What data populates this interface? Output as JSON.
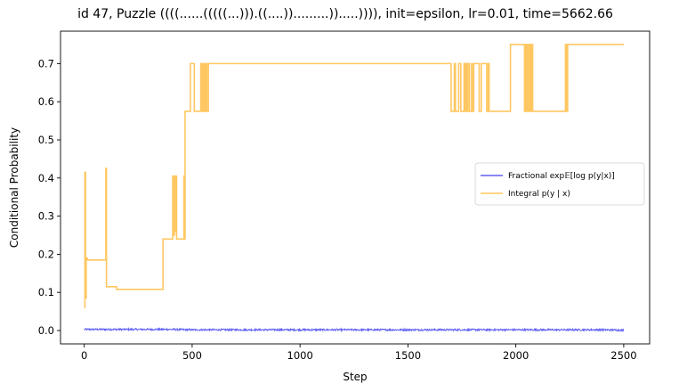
{
  "chart_data": {
    "type": "line",
    "title": "id 47, Puzzle ((((......(((((...))).((....)).........)).....)))), init=epsilon, lr=0.01, time=5662.66",
    "xlabel": "Step",
    "ylabel": "Conditional Probability",
    "xlim": [
      -110,
      2620
    ],
    "ylim": [
      -0.035,
      0.785
    ],
    "xticks": [
      0,
      500,
      1000,
      1500,
      2000,
      2500
    ],
    "yticks": [
      0.0,
      0.1,
      0.2,
      0.3,
      0.4,
      0.5,
      0.6,
      0.7
    ],
    "ytick_labels": [
      "0.0",
      "0.1",
      "0.2",
      "0.3",
      "0.4",
      "0.5",
      "0.6",
      "0.7"
    ],
    "grid": false,
    "legend_position": "center-right",
    "series": [
      {
        "name": "Fractional exp𝔼[log p(y|x)]",
        "color": "#0000ee",
        "style": "noisy",
        "x": [
          0,
          100,
          200,
          300,
          400,
          500,
          600,
          700,
          800,
          900,
          1000,
          1100,
          1200,
          1300,
          1400,
          1500,
          1600,
          1700,
          1800,
          1900,
          2000,
          2100,
          2200,
          2300,
          2400,
          2500
        ],
        "y": [
          0.003,
          0.003,
          0.003,
          0.003,
          0.003,
          0.002,
          0.002,
          0.002,
          0.002,
          0.002,
          0.002,
          0.002,
          0.002,
          0.002,
          0.002,
          0.002,
          0.002,
          0.002,
          0.002,
          0.002,
          0.002,
          0.002,
          0.002,
          0.002,
          0.002,
          0.001
        ]
      },
      {
        "name": "Integral p(y | x)",
        "color": "#ffa500",
        "style": "step",
        "x": [
          0,
          3,
          6,
          9,
          12,
          15,
          100,
          103,
          106,
          150,
          365,
          410,
          413,
          418,
          420,
          425,
          428,
          462,
          465,
          467,
          487,
          492,
          510,
          540,
          545,
          548,
          552,
          555,
          558,
          562,
          568,
          575,
          1700,
          1715,
          1720,
          1735,
          1745,
          1760,
          1763,
          1768,
          1772,
          1778,
          1785,
          1795,
          1798,
          1805,
          1830,
          1840,
          1845,
          1865,
          1872,
          1876,
          1885,
          1975,
          2040,
          2043,
          2048,
          2052,
          2058,
          2062,
          2067,
          2073,
          2078,
          2230,
          2235,
          2240,
          2500
        ],
        "y": [
          0.06,
          0.415,
          0.085,
          0.185,
          0.19,
          0.185,
          0.425,
          0.115,
          0.115,
          0.108,
          0.24,
          0.405,
          0.25,
          0.405,
          0.26,
          0.405,
          0.24,
          0.405,
          0.24,
          0.575,
          0.575,
          0.7,
          0.575,
          0.7,
          0.575,
          0.7,
          0.575,
          0.7,
          0.575,
          0.7,
          0.575,
          0.7,
          0.575,
          0.7,
          0.575,
          0.7,
          0.575,
          0.7,
          0.575,
          0.7,
          0.575,
          0.7,
          0.575,
          0.7,
          0.575,
          0.7,
          0.575,
          0.7,
          0.7,
          0.575,
          0.7,
          0.575,
          0.575,
          0.75,
          0.575,
          0.75,
          0.575,
          0.75,
          0.575,
          0.75,
          0.575,
          0.75,
          0.575,
          0.75,
          0.575,
          0.75,
          0.75
        ]
      }
    ]
  }
}
